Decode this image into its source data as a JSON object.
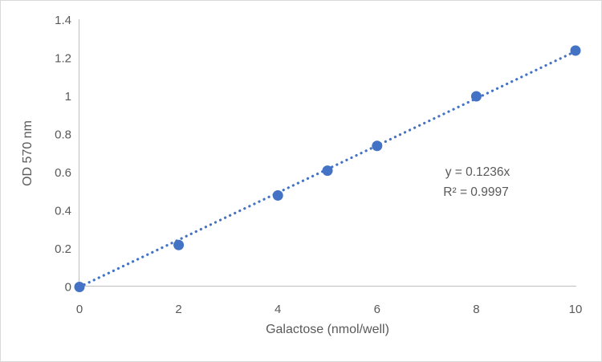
{
  "figure": {
    "background_color": "#FFFFFF",
    "border_color": "#D9D9D9"
  },
  "chart_data": {
    "type": "scatter",
    "title": "",
    "xlabel": "Galactose (nmol/well)",
    "ylabel": "OD 570 nm",
    "x": [
      0,
      2,
      4,
      5,
      6,
      8,
      10
    ],
    "y": [
      0,
      0.22,
      0.48,
      0.61,
      0.74,
      1.0,
      1.24
    ],
    "xlim": [
      0,
      10
    ],
    "ylim": [
      0,
      1.4
    ],
    "x_ticks": [
      0,
      2,
      4,
      6,
      8,
      10
    ],
    "x_tick_labels": [
      "0",
      "2",
      "4",
      "6",
      "8",
      "10"
    ],
    "y_ticks": [
      0,
      0.2,
      0.4,
      0.6,
      0.8,
      1,
      1.2,
      1.4
    ],
    "y_tick_labels": [
      "0",
      "0.2",
      "0.4",
      "0.6",
      "0.8",
      "1",
      "1.2",
      "1.4"
    ],
    "grid": false,
    "legend": "none",
    "marker_color": "#4472C4",
    "axis_color": "#BFBFBF",
    "text_color": "#595959",
    "trendline": {
      "style": "dotted",
      "color": "#4472C4",
      "slope": 0.1236,
      "intercept": 0,
      "equation_label": "y = 0.1236x",
      "r_squared_label": "R² = 0.9997"
    }
  }
}
